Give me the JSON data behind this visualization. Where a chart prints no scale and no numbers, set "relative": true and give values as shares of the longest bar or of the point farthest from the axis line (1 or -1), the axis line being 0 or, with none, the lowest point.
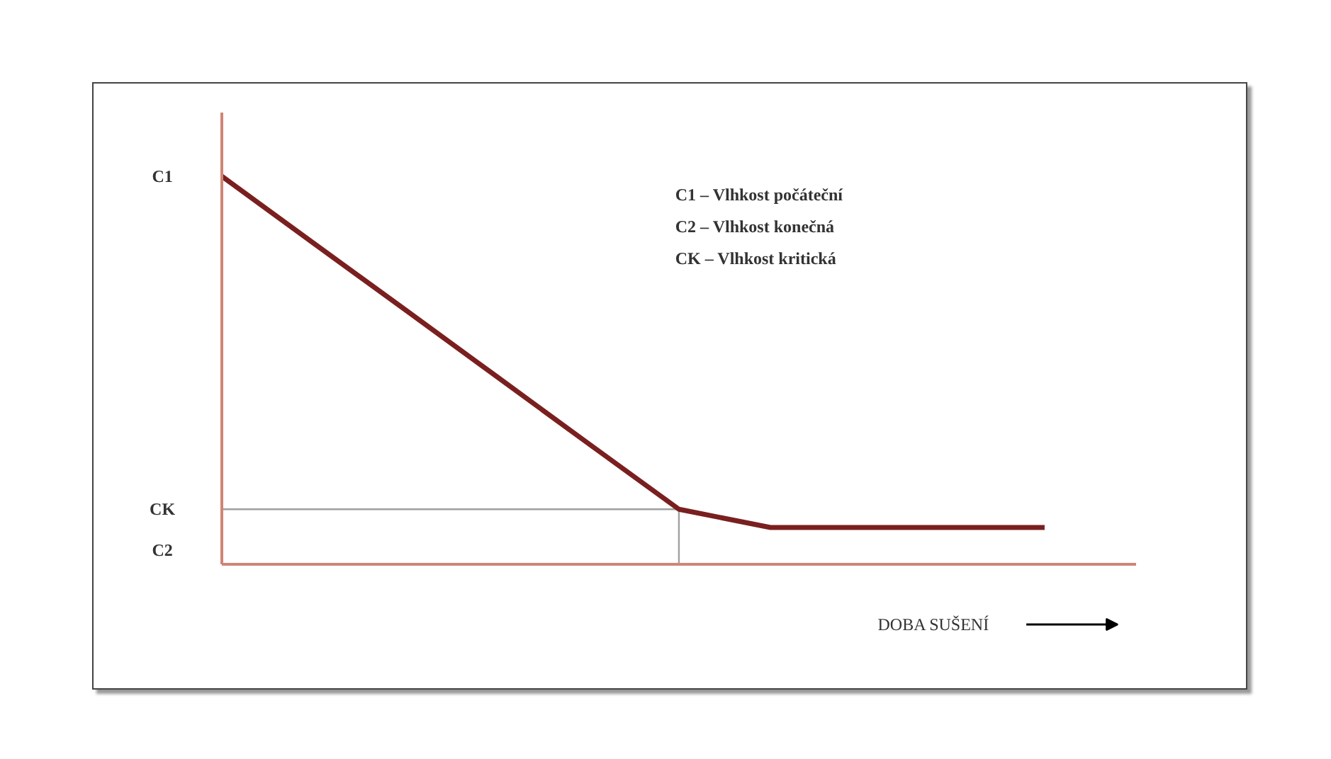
{
  "chart_data": {
    "type": "line",
    "relative": true,
    "categories": [
      null,
      null,
      null,
      null,
      null,
      null,
      null,
      null,
      null,
      null
    ],
    "marker": "none",
    "line_style": "solid",
    "xlabel": "DOBA SUŠENÍ",
    "series": [
      {
        "color": "#7a1f1f",
        "values": [
          1,
          0.828,
          0.657,
          0.485,
          0.313,
          0.142,
          0.095,
          0.095,
          0.095,
          0.095
        ]
      }
    ],
    "ref_lines": [
      {
        "axis": "y",
        "value": 0.142,
        "color": "#a0a0a0"
      }
    ],
    "annotations": [
      "C1",
      "CK",
      "C2",
      "C1 – Vlhkost počáteční",
      "C2 – Vlhkost konečná",
      "CK – Vlhkost kritická"
    ]
  }
}
